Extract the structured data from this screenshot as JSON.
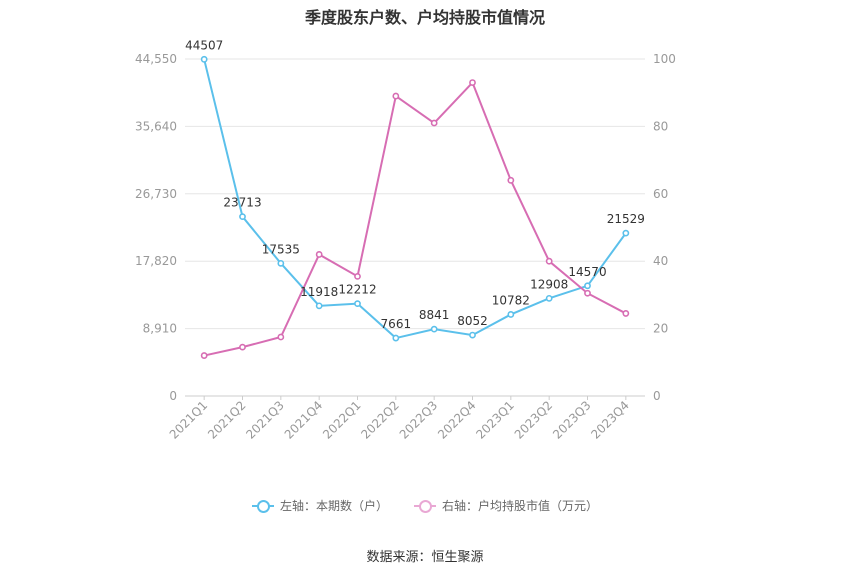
{
  "chart_data": {
    "type": "line",
    "title": "季度股东户数、户均持股市值情况",
    "categories": [
      "2021Q1",
      "2021Q2",
      "2021Q3",
      "2021Q4",
      "2022Q1",
      "2022Q2",
      "2022Q3",
      "2022Q4",
      "2023Q1",
      "2023Q2",
      "2023Q3",
      "2023Q4"
    ],
    "left_axis": {
      "ticks": [
        "0",
        "8,910",
        "17,820",
        "26,730",
        "35,640",
        "44,550"
      ],
      "ylim": [
        0,
        44550
      ]
    },
    "right_axis": {
      "ticks": [
        "0",
        "20",
        "40",
        "60",
        "80",
        "100"
      ],
      "ylim": [
        0,
        100
      ]
    },
    "series": [
      {
        "name": "左轴：本期数（户）",
        "axis": "left",
        "color": "#5bc0eb",
        "values": [
          44507,
          23713,
          17535,
          11918,
          12212,
          7661,
          8841,
          8052,
          10782,
          12908,
          14570,
          21529
        ],
        "labels": [
          "44507",
          "23713",
          "17535",
          "11918",
          "12212",
          "7661",
          "8841",
          "8052",
          "10782",
          "12908",
          "14570",
          "21529"
        ]
      },
      {
        "name": "右轴：户均持股市值（万元）",
        "axis": "right",
        "color": "#d76db3",
        "values": [
          12,
          14.5,
          17.5,
          42,
          35.5,
          89,
          81,
          93,
          64,
          40,
          30.5,
          24.5
        ]
      }
    ],
    "grid": true,
    "legend_position": "bottom"
  },
  "source_text": "数据来源：恒生聚源"
}
